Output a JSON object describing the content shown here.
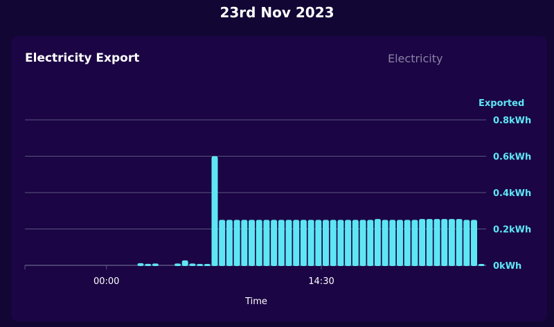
{
  "header": {
    "date": "23rd Nov 2023"
  },
  "card": {
    "title": "Electricity Export",
    "tab_label": "Electricity"
  },
  "colors": {
    "background": "#120634",
    "card": "#1b0544",
    "bar": "#5ee6f5",
    "grid": "#5a5680",
    "tab_text": "#8a83a8"
  },
  "chart_data": {
    "type": "bar",
    "title": "",
    "series_label": "Exported",
    "xlabel": "Time",
    "ylabel": "",
    "ylim": [
      0,
      0.8
    ],
    "y_ticks": [
      "0kWh",
      "0.2kWh",
      "0.4kWh",
      "0.6kWh",
      "0.8kWh"
    ],
    "x_ticks": [
      {
        "index": 0,
        "label": ""
      },
      {
        "index": 11,
        "label": "00:00"
      },
      {
        "index": 40,
        "label": "14:30"
      }
    ],
    "grid": true,
    "values": [
      0,
      0,
      0,
      0,
      0,
      0,
      0,
      0,
      0,
      0,
      0,
      0,
      0,
      0,
      0,
      0.012,
      0.008,
      0.01,
      0,
      0,
      0.01,
      0.027,
      0.01,
      0.006,
      0.006,
      0.6,
      0.25,
      0.25,
      0.25,
      0.25,
      0.25,
      0.25,
      0.25,
      0.25,
      0.25,
      0.25,
      0.25,
      0.25,
      0.25,
      0.25,
      0.25,
      0.25,
      0.25,
      0.25,
      0.25,
      0.25,
      0.25,
      0.255,
      0.25,
      0.25,
      0.25,
      0.25,
      0.25,
      0.255,
      0.255,
      0.255,
      0.255,
      0.255,
      0.255,
      0.25,
      0.25,
      0.005
    ]
  }
}
